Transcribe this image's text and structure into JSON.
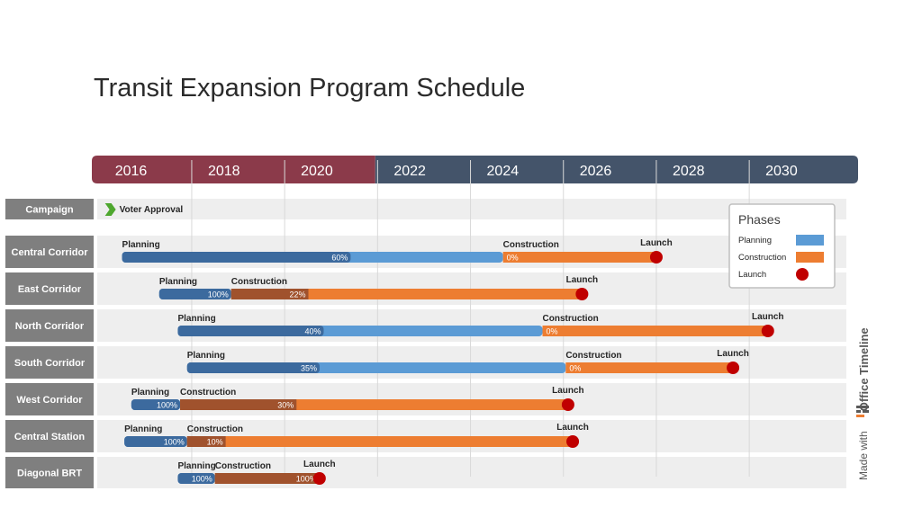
{
  "title": "Transit Expansion Program Schedule",
  "watermark": {
    "prefix": "Made with",
    "brand": "Office Timeline"
  },
  "colors": {
    "planning": "#5b9bd5",
    "planning_done": "#3c6a9e",
    "construction": "#ed7d31",
    "construction_done": "#a0522d",
    "launch": "#c00000",
    "header_past": "#8b3a4a",
    "header_future": "#44546a",
    "row_label_bg": "#7f7f7f",
    "row_bg": "#eeeeee"
  },
  "chart_data": {
    "type": "gantt",
    "title": "Transit Expansion Program Schedule",
    "x_axis": {
      "unit": "year",
      "range": [
        2015.85,
        2032.0
      ],
      "ticks": [
        "2016",
        "2018",
        "2020",
        "2022",
        "2024",
        "2026",
        "2028",
        "2030"
      ],
      "tick_values": [
        2016,
        2018,
        2020,
        2022,
        2024,
        2026,
        2028,
        2030
      ],
      "today": 2021.95
    },
    "legend": {
      "title": "Phases",
      "placement": "top-right",
      "items": [
        {
          "label": "Planning",
          "kind": "bar",
          "color": "#5b9bd5"
        },
        {
          "label": "Construction",
          "kind": "bar",
          "color": "#ed7d31"
        },
        {
          "label": "Launch",
          "kind": "milestone",
          "color": "#c00000"
        }
      ]
    },
    "rows": [
      {
        "name": "Campaign",
        "tasks": [],
        "milestones": [
          {
            "label": "Voter Approval",
            "date": 2016.25,
            "shape": "arrow",
            "color": "#4ea72e"
          }
        ]
      },
      {
        "name": "Central Corridor",
        "tasks": [
          {
            "label": "Planning",
            "start": 2016.5,
            "end": 2024.7,
            "percent": "60%",
            "phase": "planning"
          },
          {
            "label": "Construction",
            "start": 2024.7,
            "end": 2028.0,
            "percent": "0%",
            "phase": "construction"
          }
        ],
        "milestones": [
          {
            "label": "Launch",
            "date": 2028.0,
            "color": "#c00000"
          }
        ]
      },
      {
        "name": "East Corridor",
        "tasks": [
          {
            "label": "Planning",
            "start": 2017.3,
            "end": 2018.85,
            "percent": "100%",
            "phase": "planning"
          },
          {
            "label": "Construction",
            "start": 2018.85,
            "end": 2026.4,
            "percent": "22%",
            "phase": "construction"
          }
        ],
        "milestones": [
          {
            "label": "Launch",
            "date": 2026.4,
            "color": "#c00000"
          }
        ]
      },
      {
        "name": "North Corridor",
        "tasks": [
          {
            "label": "Planning",
            "start": 2017.7,
            "end": 2025.55,
            "percent": "40%",
            "phase": "planning"
          },
          {
            "label": "Construction",
            "start": 2025.55,
            "end": 2030.4,
            "percent": "0%",
            "phase": "construction"
          }
        ],
        "milestones": [
          {
            "label": "Launch",
            "date": 2030.4,
            "color": "#c00000"
          }
        ]
      },
      {
        "name": "South Corridor",
        "tasks": [
          {
            "label": "Planning",
            "start": 2017.9,
            "end": 2026.05,
            "percent": "35%",
            "phase": "planning"
          },
          {
            "label": "Construction",
            "start": 2026.05,
            "end": 2029.65,
            "percent": "0%",
            "phase": "construction"
          }
        ],
        "milestones": [
          {
            "label": "Launch",
            "date": 2029.65,
            "color": "#c00000"
          }
        ]
      },
      {
        "name": "West Corridor",
        "tasks": [
          {
            "label": "Planning",
            "start": 2016.7,
            "end": 2017.75,
            "percent": "100%",
            "phase": "planning"
          },
          {
            "label": "Construction",
            "start": 2017.75,
            "end": 2026.1,
            "percent": "30%",
            "phase": "construction"
          }
        ],
        "milestones": [
          {
            "label": "Launch",
            "date": 2026.1,
            "color": "#c00000"
          }
        ]
      },
      {
        "name": "Central Station",
        "tasks": [
          {
            "label": "Planning",
            "start": 2016.55,
            "end": 2017.9,
            "percent": "100%",
            "phase": "planning"
          },
          {
            "label": "Construction",
            "start": 2017.9,
            "end": 2026.2,
            "percent": "10%",
            "phase": "construction"
          }
        ],
        "milestones": [
          {
            "label": "Launch",
            "date": 2026.2,
            "color": "#c00000"
          }
        ]
      },
      {
        "name": "Diagonal BRT",
        "tasks": [
          {
            "label": "Planning",
            "start": 2017.7,
            "end": 2018.5,
            "percent": "100%",
            "phase": "planning"
          },
          {
            "label": "Construction",
            "start": 2018.5,
            "end": 2020.75,
            "percent": "100%",
            "phase": "construction"
          }
        ],
        "milestones": [
          {
            "label": "Launch",
            "date": 2020.75,
            "color": "#c00000"
          }
        ]
      }
    ]
  }
}
